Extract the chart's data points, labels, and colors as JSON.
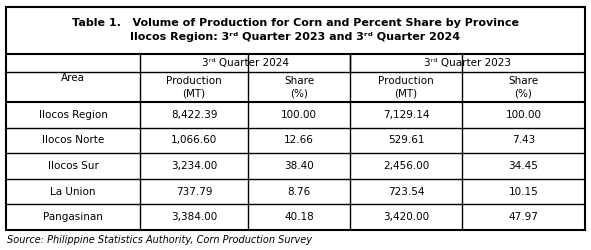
{
  "title_line1": "Table 1.   Volume of Production for Corn and Percent Share by Province",
  "title_line2": "Ilocos Region: 3ʳᵈ Quarter 2023 and 3ʳᵈ Quarter 2024",
  "q2024_header": "3ʳᵈ Quarter 2024",
  "q2023_header": "3ʳᵈ Quarter 2023",
  "col_sub1": "Production\n(MT)",
  "col_sub2": "Share\n(%)",
  "row_header": "Area",
  "areas": [
    "Ilocos Region",
    "Ilocos Norte",
    "Ilocos Sur",
    "La Union",
    "Pangasinan"
  ],
  "data": [
    [
      "8,422.39",
      "100.00",
      "7,129.14",
      "100.00"
    ],
    [
      "1,066.60",
      "12.66",
      "529.61",
      "7.43"
    ],
    [
      "3,234.00",
      "38.40",
      "2,456.00",
      "34.45"
    ],
    [
      "737.79",
      "8.76",
      "723.54",
      "10.15"
    ],
    [
      "3,384.00",
      "40.18",
      "3,420.00",
      "47.97"
    ]
  ],
  "source": "Source: Philippine Statistics Authority, Corn Production Survey",
  "bg_color": "#ffffff",
  "border_lw": 1.5,
  "inner_lw": 1.0,
  "title_fontsize": 8.0,
  "header_fontsize": 7.5,
  "data_fontsize": 7.5,
  "source_fontsize": 7.0
}
